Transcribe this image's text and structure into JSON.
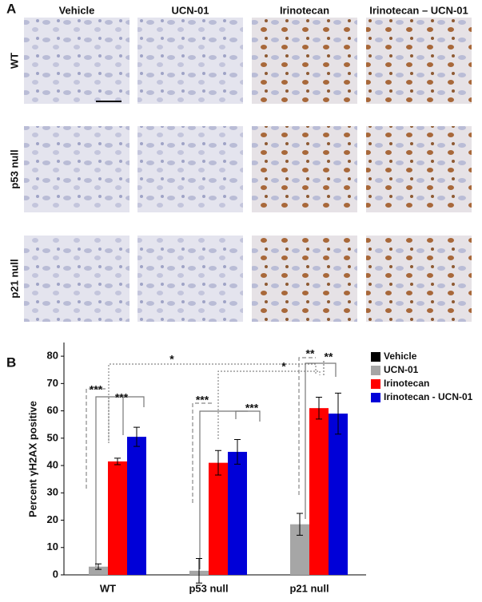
{
  "panel_a": {
    "label": "A",
    "columns": [
      "Vehicle",
      "UCN-01",
      "Irinotecan",
      "Irinotecan – UCN-01"
    ],
    "rows": [
      "WT",
      "p53 null",
      "p21 null"
    ]
  },
  "chart_data": {
    "type": "bar",
    "panel_label": "B",
    "y_label": "Percent γH2AX positive",
    "categories": [
      "WT",
      "p53 null",
      "p21 null"
    ],
    "series": [
      {
        "name": "Vehicle",
        "color": "#000000",
        "values": [
          0,
          0,
          0
        ],
        "errors": [
          0,
          0,
          0
        ]
      },
      {
        "name": "UCN-01",
        "color": "#a6a6a6",
        "values": [
          3,
          1.5,
          18.5
        ],
        "errors": [
          1,
          4.5,
          4
        ]
      },
      {
        "name": "Irinotecan",
        "color": "#ff0000",
        "values": [
          41.5,
          41,
          61
        ],
        "errors": [
          1.2,
          4.5,
          4
        ]
      },
      {
        "name": "Irinotecan - UCN-01",
        "color": "#0000d8",
        "values": [
          50.5,
          45,
          59
        ],
        "errors": [
          3.5,
          4.5,
          7.5
        ]
      }
    ],
    "ylim": [
      0,
      85
    ],
    "yticks": [
      0,
      10,
      20,
      30,
      40,
      50,
      60,
      70,
      80
    ],
    "annotations": [
      "***",
      "***",
      "*",
      "*",
      "***",
      "***",
      "**",
      "**"
    ]
  }
}
